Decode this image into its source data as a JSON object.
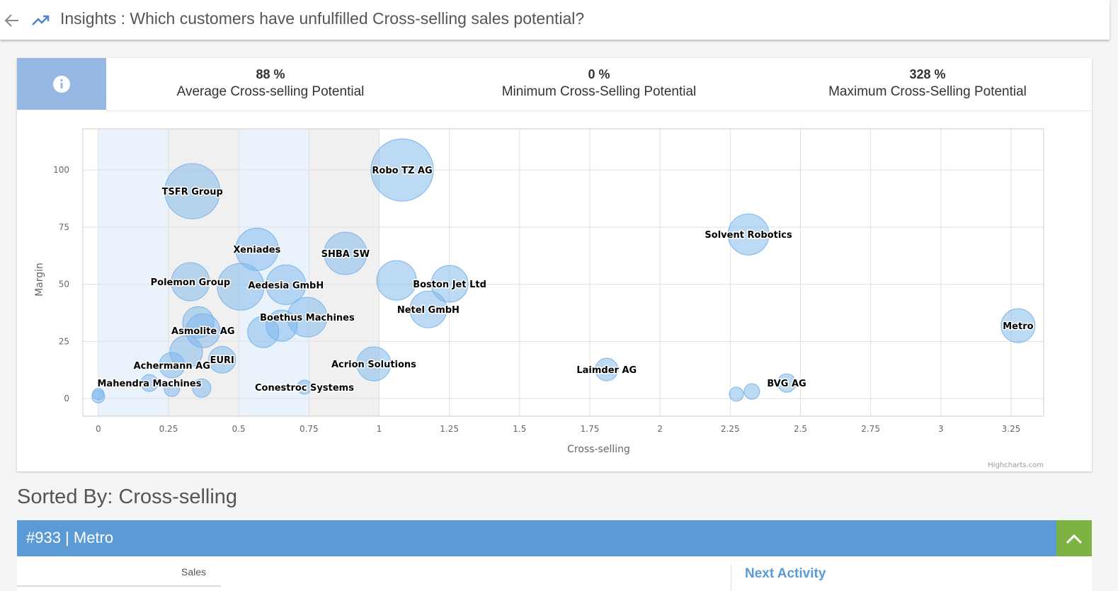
{
  "header": {
    "title": "Insights : Which customers have unfulfilled Cross-selling sales potential?"
  },
  "stats": [
    {
      "value": "88 %",
      "label": "Average Cross-selling Potential"
    },
    {
      "value": "0 %",
      "label": "Minimum Cross-Selling Potential"
    },
    {
      "value": "328 %",
      "label": "Maximum Cross-Selling Potential"
    }
  ],
  "chart_data": {
    "type": "bubble",
    "x_label": "Cross-selling",
    "y_label": "Margin",
    "credit": "Highcharts.com",
    "xlim": [
      -0.055,
      3.366
    ],
    "ylim": [
      -7.7,
      118
    ],
    "xticks": [
      0,
      0.25,
      0.5,
      0.75,
      1,
      1.25,
      1.5,
      1.75,
      2,
      2.25,
      2.5,
      2.75,
      3,
      3.25
    ],
    "yticks": [
      0,
      25,
      50,
      75,
      100
    ],
    "grid": true,
    "color": "#7cb5ec",
    "plot_bands": [
      {
        "from": 0,
        "to": 0.25,
        "color": "#eaf3fb"
      },
      {
        "from": 0.25,
        "to": 0.5,
        "color": "#f0f0f0"
      },
      {
        "from": 0.5,
        "to": 0.75,
        "color": "#eaf3fb"
      },
      {
        "from": 0.75,
        "to": 1,
        "color": "#f0f0f0"
      }
    ],
    "names": [
      "Robo TZ AG",
      "TSFR Group",
      "Solvent Robotics",
      "Xeniades",
      "SHBA SW",
      null,
      "Polemon Group",
      "Aedesia GmbH",
      null,
      "Boston Jet Ltd",
      "Netel GmbH",
      "Boethus Machines",
      null,
      null,
      null,
      "Asmolite AG",
      null,
      "EURI",
      "Achermann AG",
      "Acrion Solutions",
      "Metro",
      "Laimder AG",
      "BVG AG",
      null,
      null,
      "Mahendra Machines",
      null,
      null,
      "Conestroc Systems",
      null,
      null
    ],
    "x": [
      1.082,
      0.335,
      2.315,
      0.565,
      0.88,
      0.507,
      0.328,
      0.668,
      1.062,
      1.251,
      1.175,
      0.744,
      0.653,
      0.587,
      0.356,
      0.373,
      0.313,
      0.441,
      0.262,
      0.981,
      3.275,
      1.81,
      2.451,
      2.327,
      2.272,
      0.182,
      0.262,
      0.368,
      0.734,
      0,
      0
    ],
    "y": [
      100,
      90.7,
      71.8,
      65.3,
      63.5,
      48.9,
      51.1,
      49.8,
      51.7,
      50.2,
      39,
      35.6,
      31.9,
      29.1,
      33.4,
      29.7,
      20.4,
      17,
      14.6,
      15.2,
      31.9,
      12.7,
      6.8,
      3.1,
      1.9,
      6.8,
      4.3,
      4.6,
      5,
      0.9,
      2
    ],
    "size": [
      44,
      39,
      29,
      30,
      30,
      33,
      27,
      28,
      28,
      26,
      26,
      28,
      22,
      22,
      22,
      24,
      23,
      19,
      18,
      24,
      24,
      16,
      13,
      11,
      10,
      12,
      11,
      13,
      10,
      9,
      8
    ]
  },
  "section": {
    "title": "Sorted By: Cross-selling"
  },
  "record": {
    "title": "#933 | Metro",
    "col1": "Sales",
    "col2": "Next Activity"
  }
}
